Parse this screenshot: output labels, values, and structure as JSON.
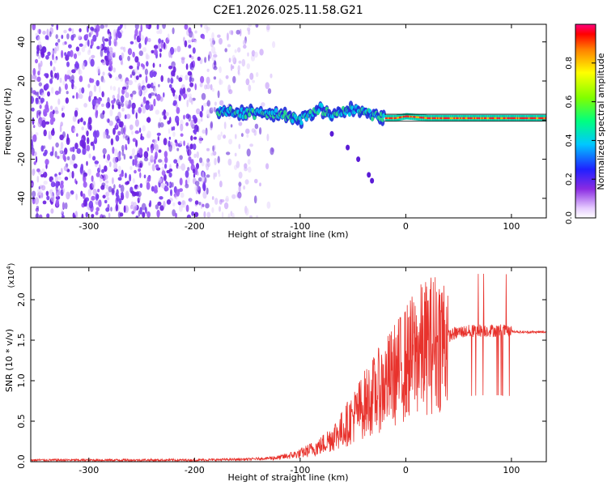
{
  "chart_data": [
    {
      "type": "heatmap",
      "title": "C2E1.2026.025.11.58.G21",
      "xlabel": "Height of straight line (km)",
      "ylabel": "Frequency (Hz)",
      "xlim": [
        -355,
        133
      ],
      "ylim": [
        -50,
        49
      ],
      "xticks": [
        -300,
        -200,
        -100,
        0,
        100
      ],
      "yticks": [
        -40,
        -20,
        0,
        20,
        40
      ],
      "colorbar": {
        "label": "Normalized spectral amplitude",
        "range": [
          0,
          1
        ],
        "ticks": [
          "0.0",
          "0.2",
          "0.4",
          "0.6",
          "0.8"
        ]
      },
      "signal_track": [
        [
          -175,
          5
        ],
        [
          -160,
          4
        ],
        [
          -140,
          3
        ],
        [
          -120,
          3
        ],
        [
          -100,
          0
        ],
        [
          -90,
          3
        ],
        [
          -80,
          6
        ],
        [
          -70,
          2
        ],
        [
          -60,
          4
        ],
        [
          -50,
          5
        ],
        [
          -40,
          5
        ],
        [
          -30,
          2
        ],
        [
          -20,
          1
        ],
        [
          -10,
          1
        ],
        [
          0,
          2
        ],
        [
          20,
          1
        ],
        [
          40,
          1
        ],
        [
          60,
          1
        ],
        [
          80,
          1
        ],
        [
          100,
          1
        ],
        [
          133,
          1
        ]
      ],
      "secondary_trace": [
        [
          -70,
          -7
        ],
        [
          -55,
          -14
        ],
        [
          -45,
          -20
        ],
        [
          -35,
          -28
        ],
        [
          -32,
          -31
        ]
      ]
    },
    {
      "type": "line",
      "xlabel": "Height of straight line (km)",
      "ylabel": "SNR (10 * v/v)",
      "multiplier": "(x10",
      "multiplier_exp": "4",
      "xlim": [
        -355,
        133
      ],
      "ylim": [
        0,
        2.4
      ],
      "xticks": [
        -300,
        -200,
        -100,
        0,
        100
      ],
      "yticks": [
        "0.0",
        "0.5",
        "1.0",
        "1.5",
        "2.0"
      ],
      "series": [
        {
          "name": "SNR",
          "color": "#e8322c",
          "envelope": [
            [
              -355,
              0.02
            ],
            [
              -200,
              0.02
            ],
            [
              -150,
              0.03
            ],
            [
              -120,
              0.05
            ],
            [
              -100,
              0.1
            ],
            [
              -80,
              0.2
            ],
            [
              -60,
              0.4
            ],
            [
              -40,
              0.7
            ],
            [
              -20,
              0.95
            ],
            [
              -5,
              1.15
            ],
            [
              10,
              1.35
            ],
            [
              30,
              1.5
            ],
            [
              50,
              1.6
            ],
            [
              70,
              1.62
            ],
            [
              90,
              1.62
            ],
            [
              110,
              1.6
            ],
            [
              133,
              1.6
            ]
          ]
        }
      ]
    }
  ]
}
